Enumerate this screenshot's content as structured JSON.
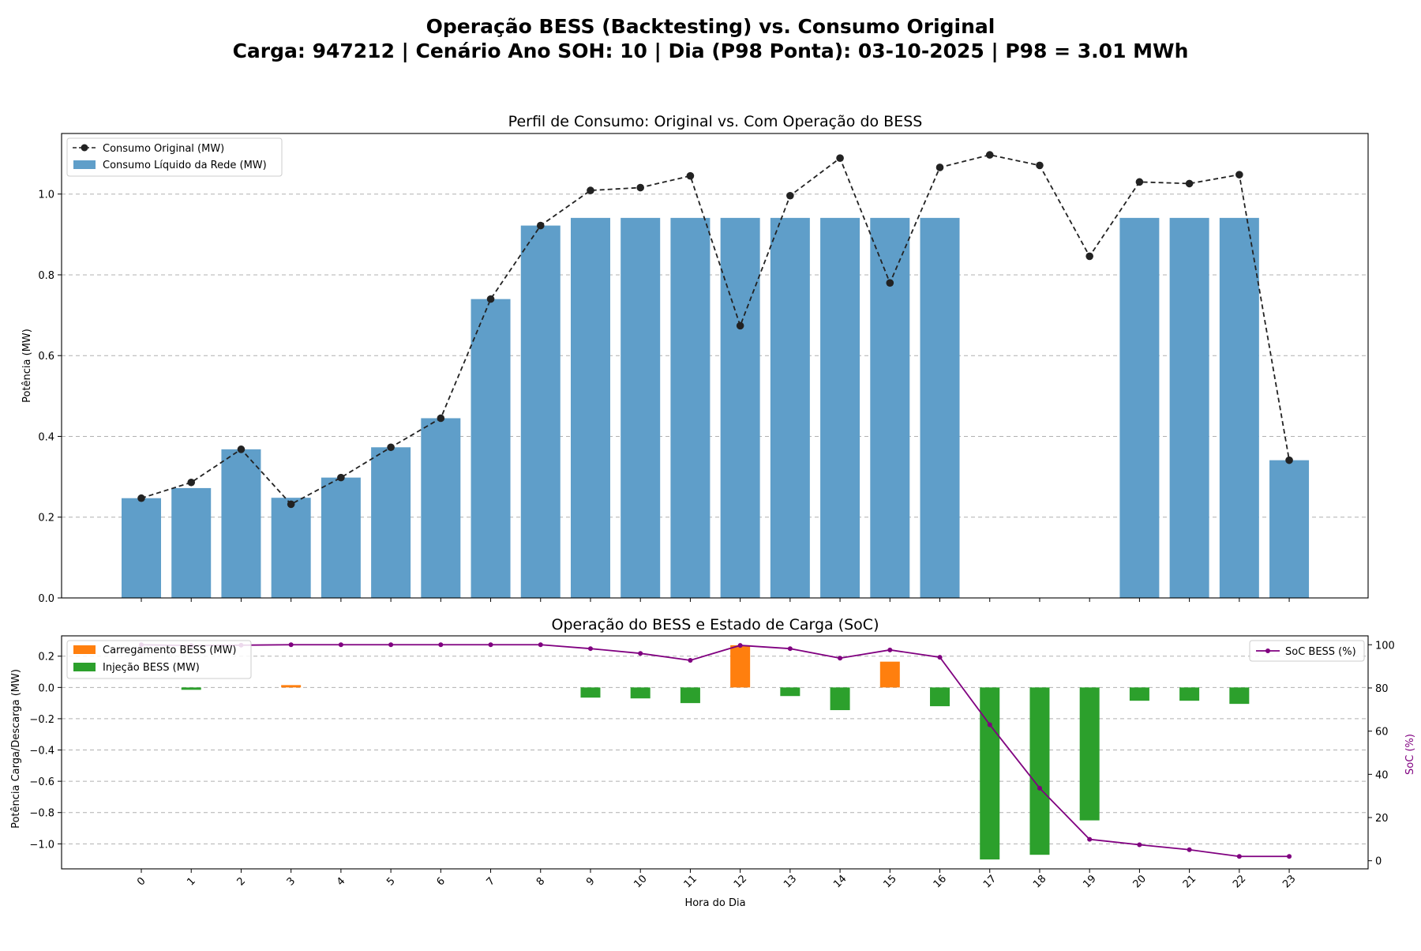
{
  "suptitle": {
    "line1": "Operação BESS (Backtesting) vs. Consumo Original",
    "line2": "Carga: 947212 | Cenário Ano SOH: 10 | Dia (P98 Ponta): 03-10-2025 | P98 = 3.01 MWh"
  },
  "colors": {
    "original": "#222222",
    "grid_bar": "#5f9ec9",
    "charge": "#ff7f0e",
    "inject": "#2ca02c",
    "soc": "#800080"
  },
  "chart_data": [
    {
      "type": "bar",
      "title": "Perfil de Consumo: Original vs. Com Operação do BESS",
      "xlabel": "",
      "ylabel": "Potência (MW)",
      "ylim": [
        0,
        1.15
      ],
      "yticks": [
        "0.0",
        "0.2",
        "0.4",
        "0.6",
        "0.8",
        "1.0"
      ],
      "grid": "y",
      "legend": "top-left",
      "categories": [
        0,
        1,
        2,
        3,
        4,
        5,
        6,
        7,
        8,
        9,
        10,
        11,
        12,
        13,
        14,
        15,
        16,
        17,
        18,
        19,
        20,
        21,
        22,
        23
      ],
      "series": [
        {
          "name": "Consumo Original (MW)",
          "kind": "line",
          "style": "dashed",
          "values": [
            0.247,
            0.286,
            0.368,
            0.232,
            0.298,
            0.373,
            0.445,
            0.74,
            0.922,
            1.009,
            1.016,
            1.045,
            0.674,
            0.996,
            1.089,
            0.78,
            1.066,
            1.097,
            1.071,
            0.846,
            1.03,
            1.026,
            1.048,
            0.341
          ]
        },
        {
          "name": "Consumo Líquido da Rede (MW)",
          "kind": "bar",
          "values": [
            0.247,
            0.272,
            0.368,
            0.248,
            0.298,
            0.373,
            0.445,
            0.74,
            0.922,
            0.941,
            0.941,
            0.941,
            0.941,
            0.941,
            0.941,
            0.941,
            0.941,
            0,
            0,
            0,
            0.941,
            0.941,
            0.941,
            0.341
          ]
        }
      ]
    },
    {
      "type": "bar",
      "title": "Operação do BESS e Estado de Carga (SoC)",
      "xlabel": "Hora do Dia",
      "ylabel": "Potência Carga/Descarga (MW)",
      "y2label": "SoC (%)",
      "ylim": [
        -1.16,
        0.33
      ],
      "y2lim": [
        -3.76,
        104.12
      ],
      "yticks": [
        "−1.0",
        "−0.8",
        "−0.6",
        "−0.4",
        "−0.2",
        "0.0",
        "0.2"
      ],
      "y2ticks": [
        "0",
        "20",
        "40",
        "60",
        "80",
        "100"
      ],
      "grid": "y",
      "categories": [
        0,
        1,
        2,
        3,
        4,
        5,
        6,
        7,
        8,
        9,
        10,
        11,
        12,
        13,
        14,
        15,
        16,
        17,
        18,
        19,
        20,
        21,
        22,
        23
      ],
      "series": [
        {
          "name": "Carregamento BESS (MW)",
          "kind": "bar",
          "values": [
            0,
            0,
            0,
            0.015,
            0,
            0,
            0,
            0,
            0,
            0,
            0,
            0,
            0.27,
            0,
            0,
            0.165,
            0,
            0,
            0,
            0,
            0,
            0,
            0,
            0
          ]
        },
        {
          "name": "Injeção BESS (MW)",
          "kind": "bar",
          "values": [
            0,
            -0.015,
            0,
            0,
            0,
            0,
            0,
            0,
            0,
            -0.065,
            -0.07,
            -0.1,
            0,
            -0.055,
            -0.145,
            0,
            -0.12,
            -1.1,
            -1.07,
            -0.85,
            -0.085,
            -0.085,
            -0.105,
            0
          ]
        },
        {
          "name": "SoC BESS (%)",
          "kind": "line",
          "axis": "right",
          "values": [
            100,
            99.6,
            99.8,
            100,
            100,
            100,
            100,
            100,
            100,
            98.2,
            96,
            92.8,
            99.7,
            98.2,
            93.8,
            97.6,
            94.2,
            63,
            33.6,
            9.9,
            7.4,
            5.1,
            2,
            2
          ]
        }
      ],
      "legend": [
        "top-left",
        "top-right"
      ]
    }
  ]
}
